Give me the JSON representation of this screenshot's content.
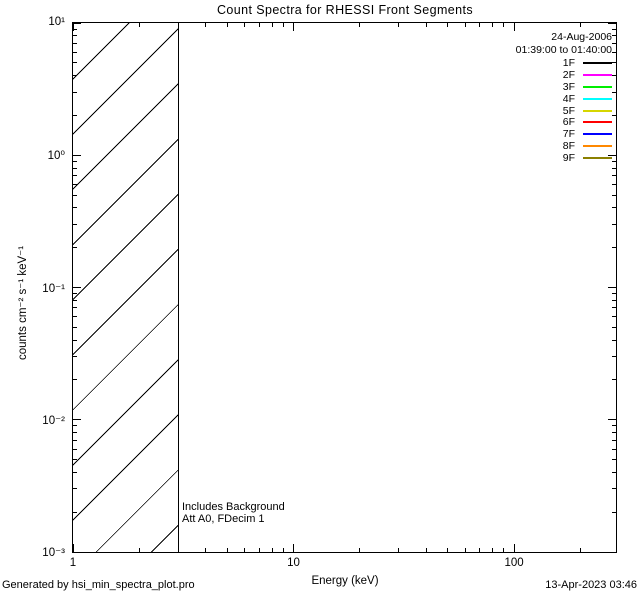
{
  "footer": {
    "generated_by": "Generated by hsi_min_spectra_plot.pro",
    "timestamp": "13-Apr-2023 03:46"
  },
  "chart_data": {
    "type": "line",
    "title": "Count Spectra for RHESSI Front Segments",
    "xlabel": "Energy (keV)",
    "ylabel": "counts cm⁻² s⁻¹ keV⁻¹",
    "background_color": "#ffffff",
    "foreground_color": "#000000",
    "grid": false,
    "x_axis": {
      "scale": "log",
      "min": 1,
      "max": 290,
      "ticks": [
        {
          "value": 1,
          "label": "1"
        },
        {
          "value": 10,
          "label": "10"
        },
        {
          "value": 100,
          "label": "100"
        }
      ]
    },
    "y_axis": {
      "scale": "log",
      "min": 0.001,
      "max": 10,
      "ticks": [
        {
          "value": 10,
          "label": "10¹"
        },
        {
          "value": 1,
          "label": "10⁰"
        },
        {
          "value": 0.1,
          "label": "10⁻¹"
        },
        {
          "value": 0.01,
          "label": "10⁻²"
        },
        {
          "value": 0.001,
          "label": "10⁻³"
        }
      ]
    },
    "series": [],
    "legend": {
      "position": "top-right",
      "date": "24-Aug-2006",
      "time_range": "01:39:00 to 01:40:00",
      "entries": [
        {
          "label": "1F",
          "color": "#000000"
        },
        {
          "label": "2F",
          "color": "#ff00ff"
        },
        {
          "label": "3F",
          "color": "#00ee00"
        },
        {
          "label": "4F",
          "color": "#00ffff"
        },
        {
          "label": "5F",
          "color": "#d6d600"
        },
        {
          "label": "6F",
          "color": "#ff0000"
        },
        {
          "label": "7F",
          "color": "#0000ff"
        },
        {
          "label": "8F",
          "color": "#ff8800"
        },
        {
          "label": "9F",
          "color": "#8b8000"
        }
      ]
    },
    "annotations": [
      "Includes Background",
      "Att A0, FDecim 1"
    ],
    "hatched_region": {
      "x_min": 1,
      "x_max": 3,
      "style": "diagonal-hatch"
    }
  }
}
